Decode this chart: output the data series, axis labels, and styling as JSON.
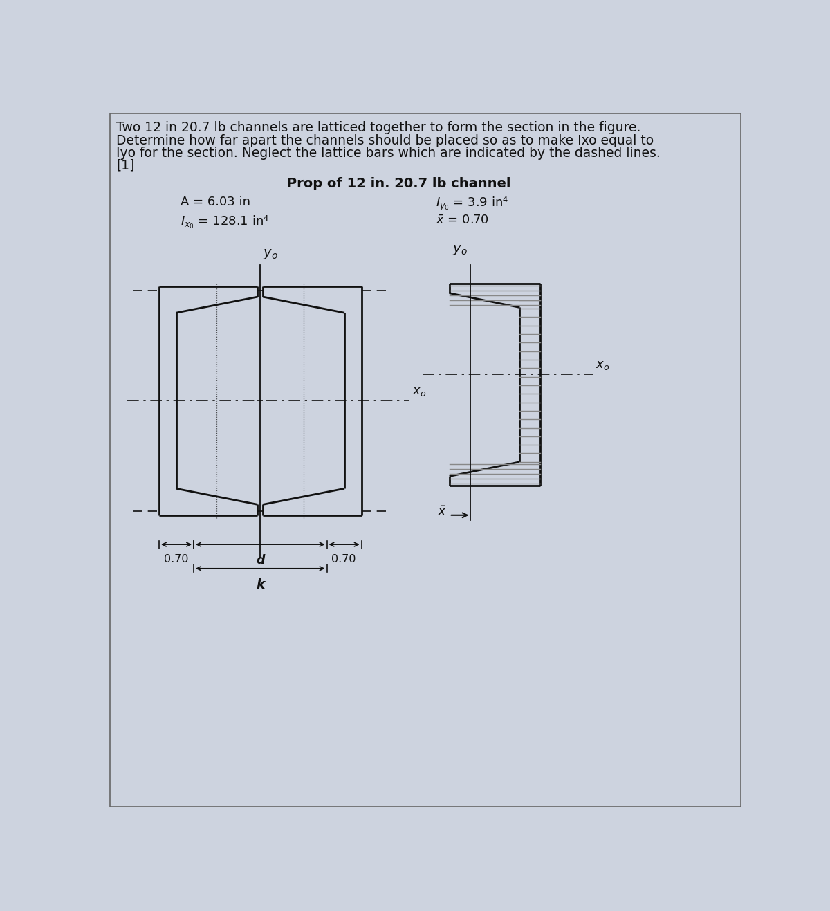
{
  "title_line1": "Two 12 in 20.7 lb channels are latticed together to form the section in the figure.",
  "title_line2": "Determine how far apart the channels should be placed so as to make Ixo equal to",
  "title_line3": "Iyo for the section. Neglect the lattice bars which are indicated by the dashed lines.",
  "title_line4": "[1]",
  "prop_title": "Prop of 12 in. 20.7 lb channel",
  "prop_A": "A = 6.03 in",
  "prop_Iyo": "= 3.9 in⁴",
  "prop_Ixo": "= 128.1 in⁴",
  "prop_xbar": "= 0.70",
  "bg_color": "#cdd3df",
  "line_color": "#111111",
  "text_color": "#111111",
  "hatch_color": "#555555",
  "font_size_title": 13.5,
  "font_size_prop": 13,
  "font_size_label": 12,
  "font_size_dim": 11.5
}
